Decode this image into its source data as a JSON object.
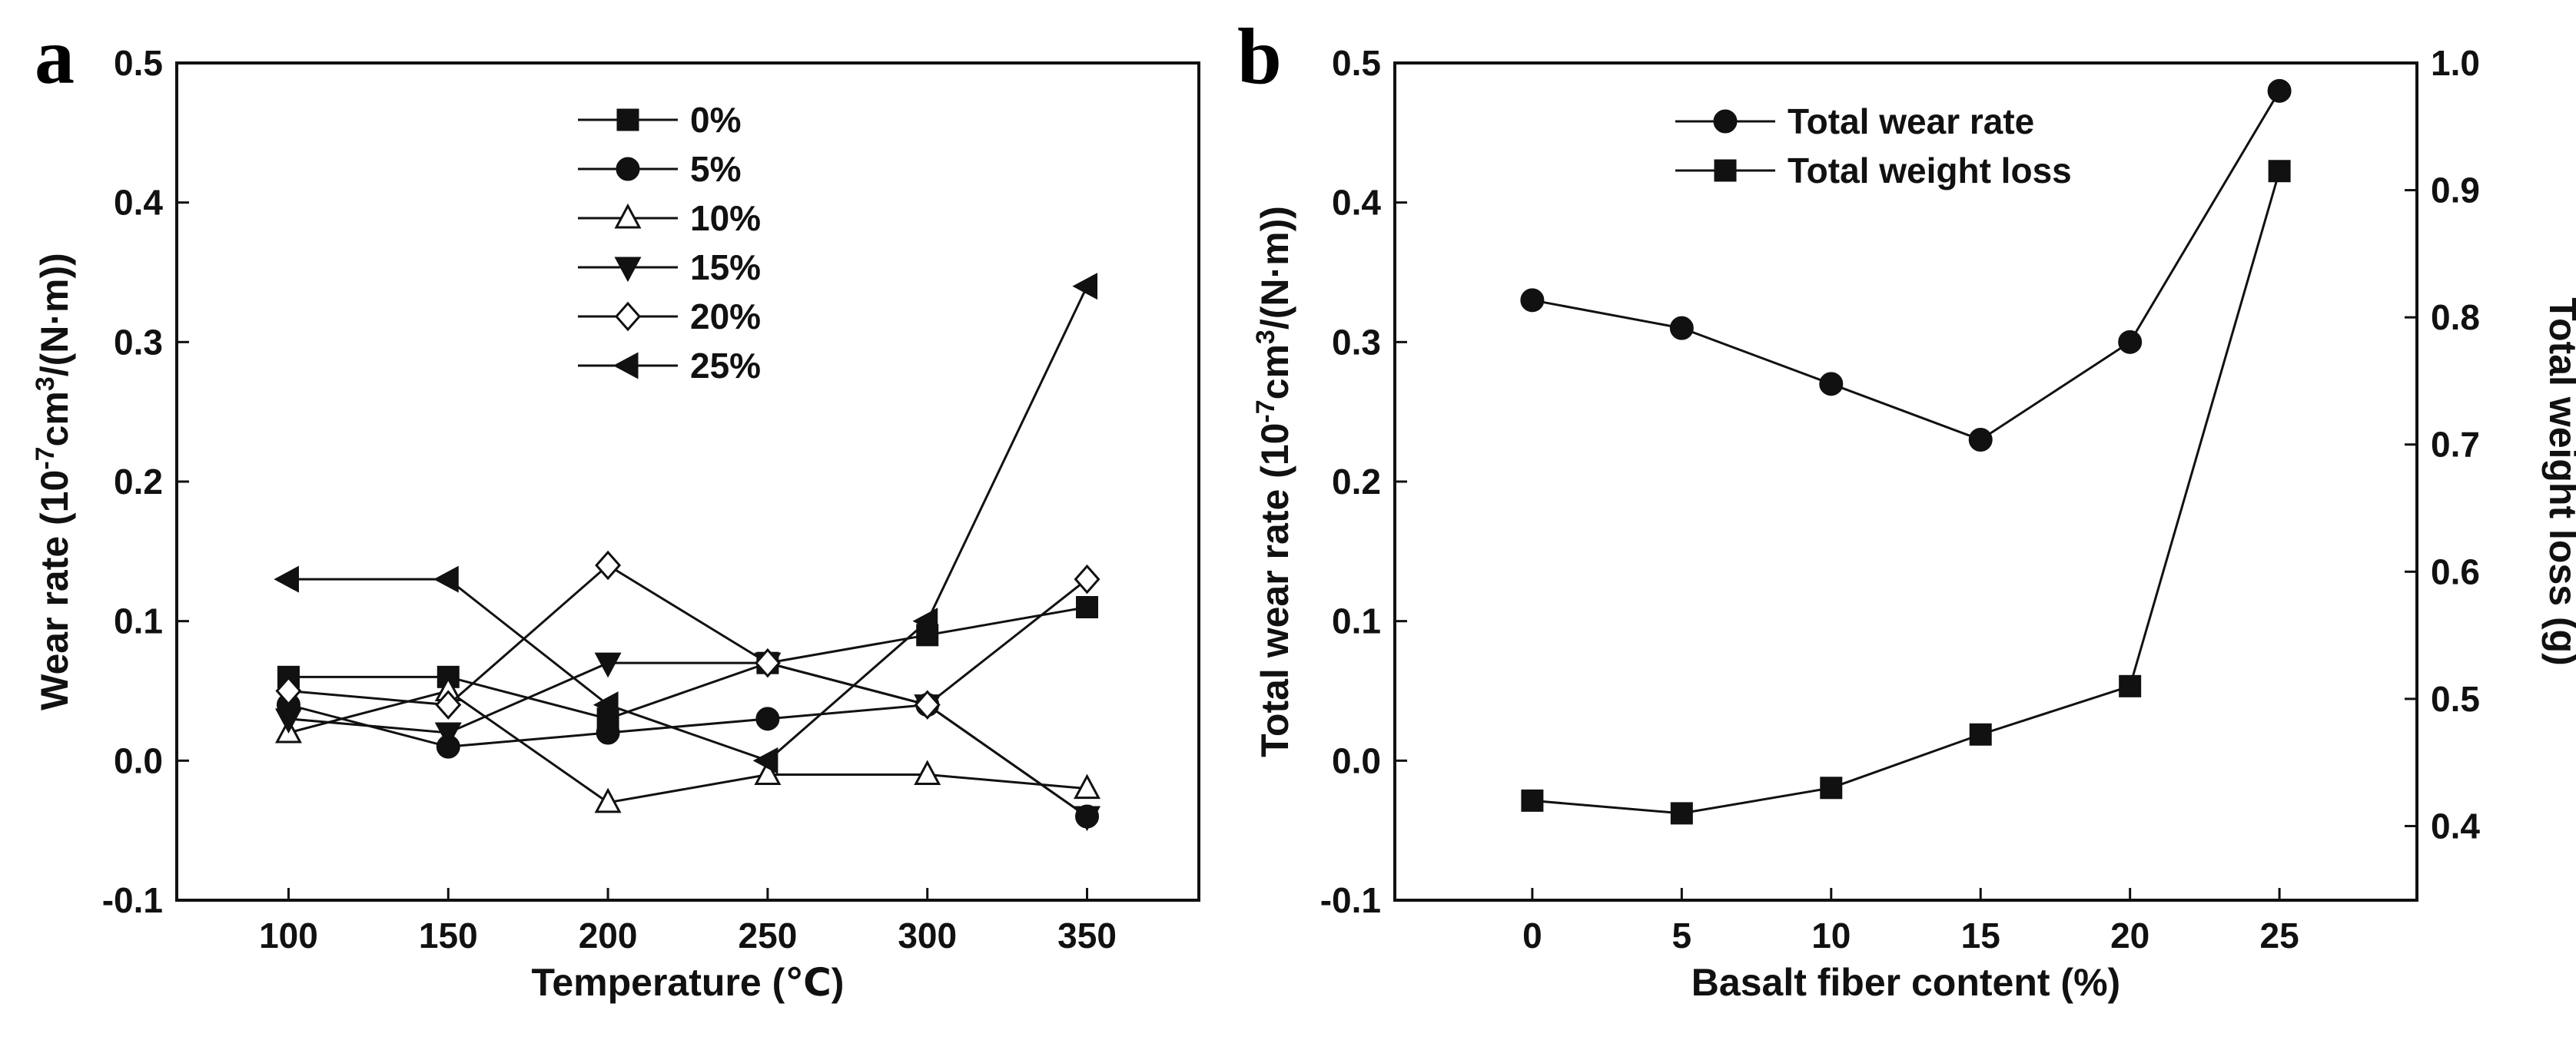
{
  "chart_data": [
    {
      "panel": "a",
      "type": "line",
      "xlabel": "Temperature (℃)",
      "ylabel_parts": [
        "Wear rate (10",
        "-7",
        "cm",
        "3",
        "/(N·m))"
      ],
      "x": [
        100,
        150,
        200,
        250,
        300,
        350
      ],
      "xticks": [
        100,
        150,
        200,
        250,
        300,
        350
      ],
      "xlim": [
        65,
        385
      ],
      "ylim": [
        -0.1,
        0.5
      ],
      "yticks": [
        -0.1,
        0.0,
        0.1,
        0.2,
        0.3,
        0.4,
        0.5
      ],
      "ytick_labels": [
        "-0.1",
        "0.0",
        "0.1",
        "0.2",
        "0.3",
        "0.4",
        "0.5"
      ],
      "legend": "top-center",
      "series": [
        {
          "name": "0%",
          "marker": "square-filled",
          "values": [
            0.06,
            0.06,
            0.03,
            0.07,
            0.09,
            0.11
          ]
        },
        {
          "name": "5%",
          "marker": "circle-filled",
          "values": [
            0.04,
            0.01,
            0.02,
            0.03,
            0.04,
            -0.04
          ]
        },
        {
          "name": "10%",
          "marker": "triangle-up-open",
          "values": [
            0.02,
            0.05,
            -0.03,
            -0.01,
            -0.01,
            -0.02
          ]
        },
        {
          "name": "15%",
          "marker": "triangle-down-filled",
          "values": [
            0.03,
            0.02,
            0.07,
            0.07,
            0.04,
            -0.04
          ]
        },
        {
          "name": "20%",
          "marker": "diamond-open",
          "values": [
            0.05,
            0.04,
            0.14,
            0.07,
            0.04,
            0.13
          ]
        },
        {
          "name": "25%",
          "marker": "triangle-left-filled",
          "values": [
            0.13,
            0.13,
            0.04,
            0.0,
            0.1,
            0.34
          ]
        }
      ]
    },
    {
      "panel": "b",
      "type": "line",
      "xlabel": "Basalt fiber content (%)",
      "ylabel_parts": [
        "Total wear rate (10",
        "-7",
        "cm",
        "3",
        "/(N·m))"
      ],
      "y2label": "Total weight loss (g)",
      "x": [
        0,
        5,
        10,
        15,
        20,
        25
      ],
      "xticks": [
        0,
        5,
        10,
        15,
        20,
        25
      ],
      "xlim": [
        -4.6,
        29.6
      ],
      "ylim": [
        -0.1,
        0.5
      ],
      "yticks": [
        -0.1,
        0.0,
        0.1,
        0.2,
        0.3,
        0.4,
        0.5
      ],
      "ytick_labels": [
        "-0.1",
        "0.0",
        "0.1",
        "0.2",
        "0.3",
        "0.4",
        "0.5"
      ],
      "y2lim": [
        0.3417,
        1.0
      ],
      "y2ticks": [
        0.4,
        0.5,
        0.6,
        0.7,
        0.8,
        0.9,
        1.0
      ],
      "y2tick_labels": [
        "0.4",
        "0.5",
        "0.6",
        "0.7",
        "0.8",
        "0.9",
        "1.0"
      ],
      "legend": "top-center",
      "series": [
        {
          "name": "Total wear rate",
          "axis": "left",
          "marker": "circle-filled",
          "values": [
            0.33,
            0.31,
            0.27,
            0.23,
            0.3,
            0.48
          ]
        },
        {
          "name": "Total weight loss",
          "axis": "right",
          "marker": "square-filled",
          "values": [
            0.42,
            0.41,
            0.43,
            0.472,
            0.51,
            0.915
          ]
        }
      ]
    }
  ],
  "panel_letters": {
    "a": "a",
    "b": "b"
  }
}
